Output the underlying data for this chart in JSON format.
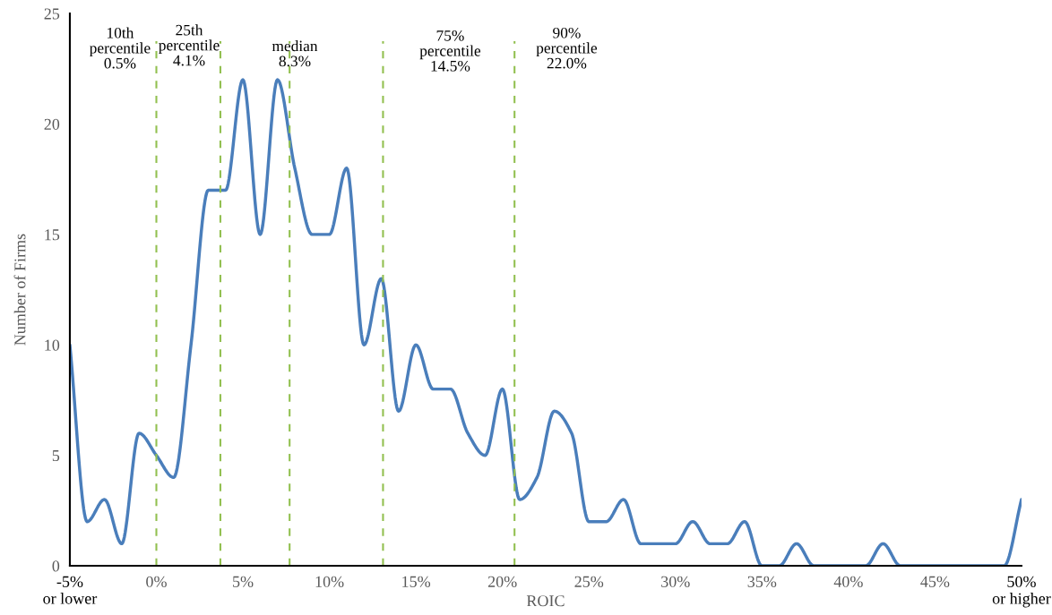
{
  "chart_data": {
    "type": "line",
    "xlabel": "ROIC",
    "ylabel": "Number of Firms",
    "x": [
      -5,
      -4,
      -3,
      -2,
      -1,
      0,
      1,
      2,
      3,
      4,
      5,
      6,
      7,
      8,
      9,
      10,
      11,
      12,
      13,
      14,
      15,
      16,
      17,
      18,
      19,
      20,
      21,
      22,
      23,
      24,
      25,
      26,
      27,
      28,
      29,
      30,
      31,
      32,
      33,
      34,
      35,
      36,
      37,
      38,
      39,
      40,
      41,
      42,
      43,
      44,
      45,
      46,
      47,
      48,
      49,
      50
    ],
    "series": [
      {
        "color": "#4a7ebb",
        "values": [
          10,
          2,
          3,
          1,
          6,
          5,
          4,
          10,
          17,
          17,
          22,
          15,
          22,
          18,
          15,
          15,
          18,
          10,
          13,
          7,
          10,
          8,
          8,
          6,
          5,
          8,
          3,
          4,
          7,
          6,
          2,
          2,
          3,
          1,
          1,
          1,
          2,
          1,
          1,
          2,
          0,
          0,
          1,
          0,
          0,
          0,
          0,
          1,
          0,
          0,
          0,
          0,
          0,
          0,
          0,
          3
        ]
      }
    ],
    "xlim": [
      -5,
      50
    ],
    "xticks": [
      {
        "value": -5,
        "label": "-5%\nor lower"
      },
      {
        "value": 0,
        "label": "0%"
      },
      {
        "value": 5,
        "label": "5%"
      },
      {
        "value": 10,
        "label": "10%"
      },
      {
        "value": 15,
        "label": "15%"
      },
      {
        "value": 20,
        "label": "20%"
      },
      {
        "value": 25,
        "label": "25%"
      },
      {
        "value": 30,
        "label": "30%"
      },
      {
        "value": 35,
        "label": "35%"
      },
      {
        "value": 40,
        "label": "40%"
      },
      {
        "value": 45,
        "label": "45%"
      },
      {
        "value": 50,
        "label": "50%\nor higher"
      }
    ],
    "ylim": [
      0,
      25
    ],
    "yticks": [
      0,
      5,
      10,
      15,
      20,
      25
    ],
    "grid": false,
    "legend": false,
    "marker": "none",
    "line_style": "solid",
    "ref_lines": [
      {
        "axis": "x",
        "value": 0.0,
        "color": "#92c050",
        "line_style": "dashed"
      },
      {
        "axis": "x",
        "value": 3.7,
        "color": "#92c050",
        "line_style": "dashed"
      },
      {
        "axis": "x",
        "value": 7.7,
        "color": "#92c050",
        "line_style": "dashed"
      },
      {
        "axis": "x",
        "value": 13.1,
        "color": "#92c050",
        "line_style": "dashed"
      },
      {
        "axis": "x",
        "value": 20.7,
        "color": "#92c050",
        "line_style": "dashed"
      }
    ],
    "annotations": [
      "10th\npercentile\n0.5%",
      "25th\npercentile\n4.1%",
      "median\n8.3%",
      "75%\npercentile\n14.5%",
      "90%\npercentile\n22.0%"
    ]
  }
}
